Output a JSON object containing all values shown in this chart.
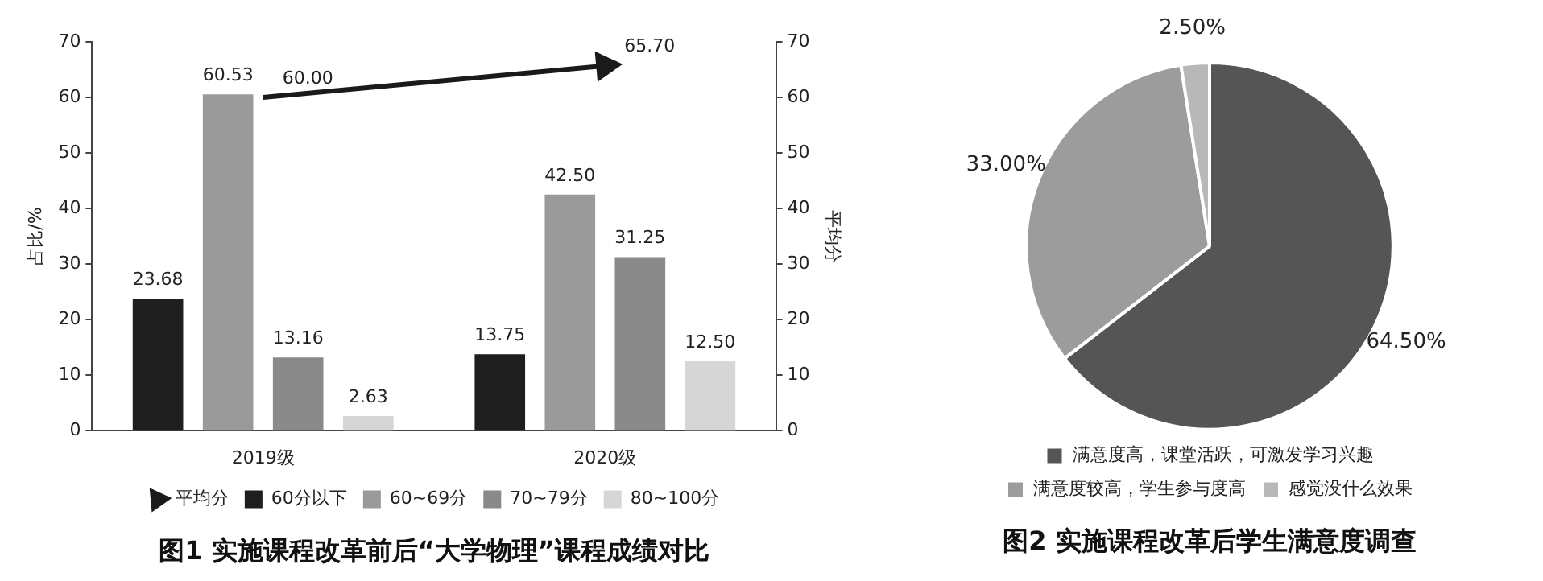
{
  "chart_data": [
    {
      "type": "bar",
      "title": "图1 实施课程改革前后“大学物理”课程成绩对比",
      "ylabel": "占比/%",
      "y2label": "平均分",
      "categories": [
        "2019级",
        "2020级"
      ],
      "series": [
        {
          "name": "60分以下",
          "color": "#1e1e1e",
          "values": [
            23.68,
            13.75
          ],
          "value_labels": [
            "23.68",
            "13.75"
          ]
        },
        {
          "name": "60~69分",
          "color": "#9a9a9a",
          "values": [
            60.53,
            42.5
          ],
          "value_labels": [
            "60.53",
            "42.50"
          ]
        },
        {
          "name": "70~79分",
          "color": "#8a8a8a",
          "values": [
            13.16,
            31.25
          ],
          "value_labels": [
            "13.16",
            "31.25"
          ]
        },
        {
          "name": "80~100分",
          "color": "#d6d6d6",
          "values": [
            2.63,
            12.5
          ],
          "value_labels": [
            "2.63",
            "12.50"
          ]
        },
        {
          "name": "平均分",
          "type": "line",
          "axis": "y2",
          "color": "#1a1a1a",
          "marker": "triangle",
          "values": [
            60.0,
            65.7
          ],
          "value_labels": [
            "60.00",
            "65.70"
          ]
        }
      ],
      "ylim": [
        0,
        70
      ],
      "yticks": [
        0,
        10,
        20,
        30,
        40,
        50,
        60,
        70
      ],
      "y2lim": [
        0,
        70
      ],
      "y2ticks": [
        0,
        10,
        20,
        30,
        40,
        50,
        60,
        70
      ],
      "grid": false,
      "legend": "bottom"
    },
    {
      "type": "pie",
      "title": "图2 实施课程改革后学生满意度调查",
      "categories": [
        "满意度高，课堂活跃，可激发学习兴趣",
        "满意度较高，学生参与度高",
        "感觉没什么效果"
      ],
      "values": [
        64.5,
        33.0,
        2.5
      ],
      "colors": [
        "#555555",
        "#9c9c9c",
        "#b8b8b8"
      ],
      "value_labels": [
        "64.50%",
        "33.00%",
        "2.50%"
      ],
      "legend": "bottom"
    }
  ]
}
